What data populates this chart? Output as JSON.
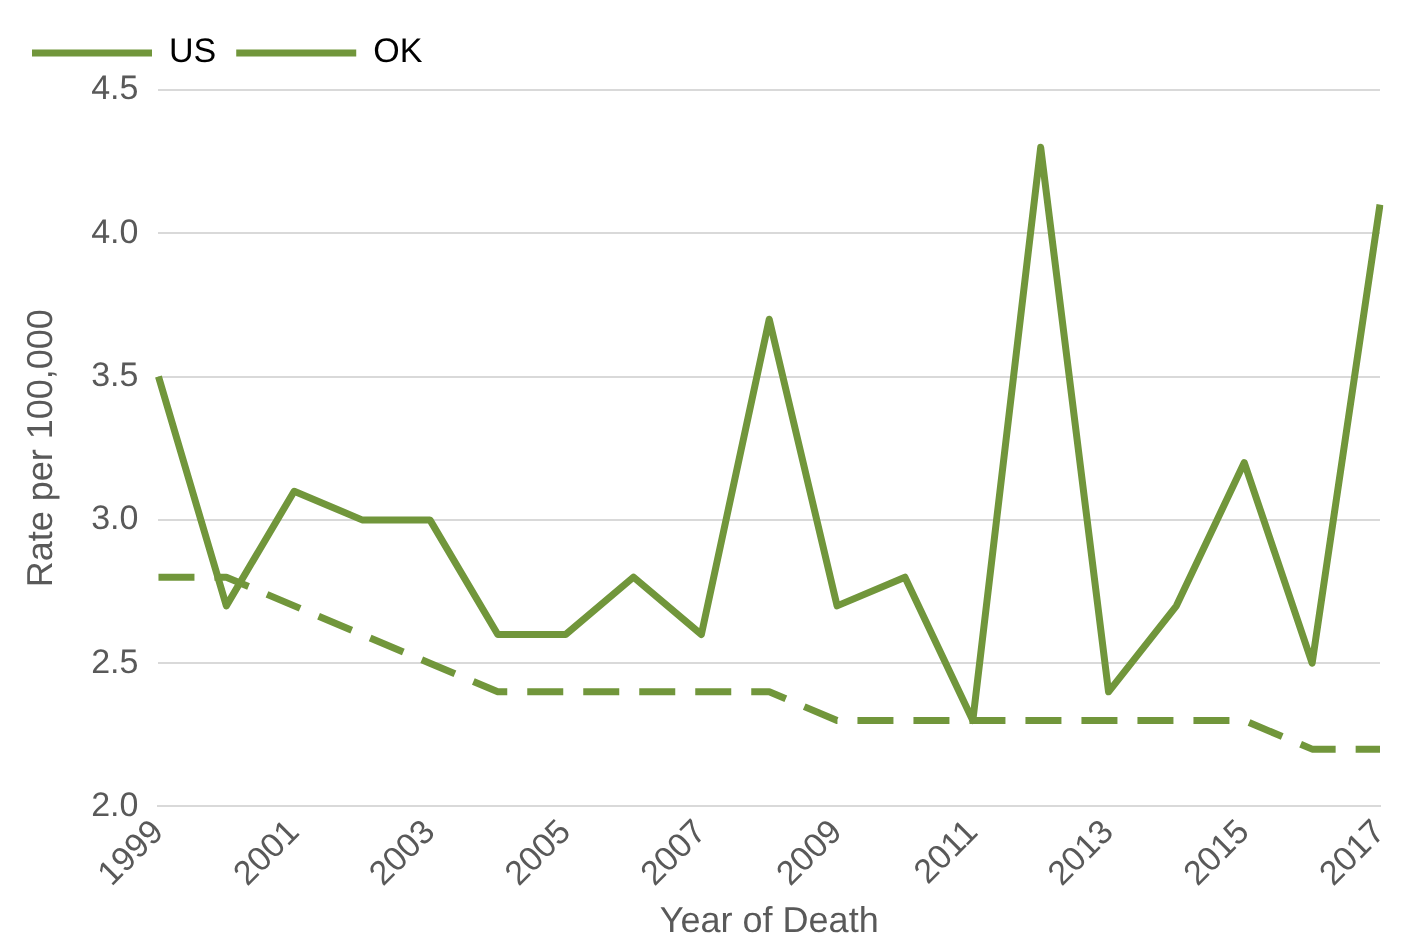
{
  "chart_data": {
    "type": "line",
    "xlabel": "Year of Death",
    "ylabel": "Rate per 100,000",
    "categories": [
      "1999",
      null,
      "2001",
      null,
      "2003",
      null,
      "2005",
      null,
      "2007",
      null,
      "2009",
      null,
      "2011",
      null,
      "2013",
      null,
      "2015",
      null,
      "2017"
    ],
    "series": [
      {
        "name": "US",
        "color": "#71963b",
        "line_style": "dashed",
        "values": [
          2.8,
          2.8,
          2.7,
          2.6,
          2.5,
          2.4,
          2.4,
          2.4,
          2.4,
          2.4,
          2.3,
          2.3,
          2.3,
          2.3,
          2.3,
          2.3,
          2.3,
          2.2,
          2.2
        ]
      },
      {
        "name": "OK",
        "color": "#71963b",
        "line_style": "solid",
        "values": [
          3.5,
          2.7,
          3.1,
          3.0,
          3.0,
          2.6,
          2.6,
          2.8,
          2.6,
          3.7,
          2.7,
          2.8,
          2.3,
          4.3,
          2.4,
          2.7,
          3.2,
          2.5,
          4.1
        ]
      }
    ],
    "ylim": [
      2.0,
      4.5
    ],
    "yticks": [
      {
        "value": 2.0,
        "label": "2.0"
      },
      {
        "value": 2.5,
        "label": "2.5"
      },
      {
        "value": 3.0,
        "label": "3.0"
      },
      {
        "value": 3.5,
        "label": "3.5"
      },
      {
        "value": 4.0,
        "label": "4.0"
      },
      {
        "value": 4.5,
        "label": "4.5"
      }
    ],
    "grid": "y",
    "legend": "top left",
    "marker": "none"
  }
}
